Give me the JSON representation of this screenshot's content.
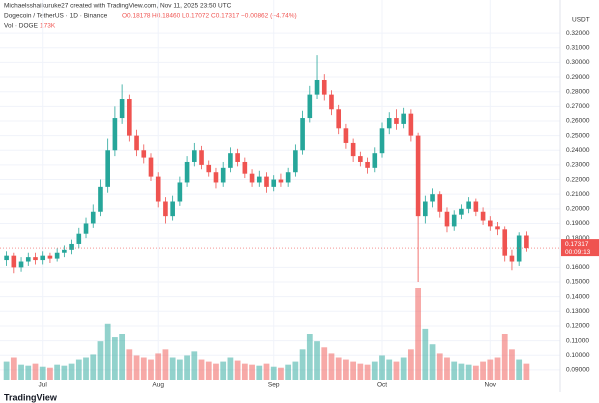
{
  "header": {
    "attribution": "Michaelsshaikuruke27 created with TradingView.com, Nov 11, 2025 23:50 UTC",
    "symbol": "Dogecoin / TetherUS · 1D · Binance",
    "open": "O0.18178",
    "high": "H0.18460",
    "low": "L0.17072",
    "close": "C0.17317",
    "change": "−0.00862 (−4.74%)",
    "volume_label": "Vol · DOGE",
    "volume_value": "173K",
    "logo": "TradingView"
  },
  "chart_data": {
    "type": "candlestick",
    "currency": "USDT",
    "price_label": "0.17317",
    "countdown": "00:09:13",
    "up_color": "#26a69a",
    "down_color": "#ef5350",
    "categories": [
      null,
      null,
      null,
      null,
      null,
      "Jul",
      null,
      null,
      null,
      null,
      null,
      null,
      null,
      null,
      null,
      null,
      null,
      null,
      null,
      null,
      null,
      "Aug",
      null,
      null,
      null,
      null,
      null,
      null,
      null,
      null,
      null,
      null,
      null,
      null,
      null,
      null,
      null,
      "Sep",
      null,
      null,
      null,
      null,
      null,
      null,
      null,
      null,
      null,
      null,
      null,
      null,
      null,
      null,
      "Oct",
      null,
      null,
      null,
      null,
      null,
      null,
      null,
      null,
      null,
      null,
      null,
      null,
      null,
      null,
      "Nov",
      null,
      null,
      null,
      null,
      null
    ],
    "open": [
      0.165,
      0.168,
      0.16,
      0.164,
      0.167,
      0.165,
      0.168,
      0.166,
      0.17,
      0.172,
      0.176,
      0.183,
      0.19,
      0.198,
      0.215,
      0.24,
      0.262,
      0.275,
      0.25,
      0.24,
      0.235,
      0.222,
      0.205,
      0.195,
      0.205,
      0.218,
      0.232,
      0.24,
      0.23,
      0.225,
      0.218,
      0.228,
      0.238,
      0.232,
      0.224,
      0.218,
      0.222,
      0.215,
      0.22,
      0.218,
      0.225,
      0.24,
      0.262,
      0.278,
      0.288,
      0.278,
      0.268,
      0.255,
      0.245,
      0.236,
      0.232,
      0.228,
      0.238,
      0.255,
      0.262,
      0.258,
      0.265,
      0.25,
      0.195,
      0.205,
      0.21,
      0.198,
      0.188,
      0.196,
      0.2,
      0.205,
      0.198,
      0.192,
      0.188,
      0.186,
      0.168,
      0.164,
      0.18178
    ],
    "high": [
      0.171,
      0.17,
      0.167,
      0.17,
      0.17,
      0.171,
      0.17,
      0.173,
      0.175,
      0.179,
      0.187,
      0.194,
      0.203,
      0.22,
      0.248,
      0.27,
      0.285,
      0.278,
      0.254,
      0.244,
      0.238,
      0.225,
      0.208,
      0.209,
      0.222,
      0.236,
      0.245,
      0.243,
      0.233,
      0.228,
      0.232,
      0.242,
      0.241,
      0.235,
      0.227,
      0.226,
      0.225,
      0.223,
      0.224,
      0.228,
      0.244,
      0.267,
      0.284,
      0.305,
      0.292,
      0.281,
      0.271,
      0.258,
      0.248,
      0.239,
      0.235,
      0.242,
      0.259,
      0.266,
      0.268,
      0.269,
      0.268,
      0.252,
      0.209,
      0.214,
      0.212,
      0.201,
      0.199,
      0.203,
      0.208,
      0.207,
      0.201,
      0.195,
      0.191,
      0.188,
      0.172,
      0.184,
      0.1846
    ],
    "low": [
      0.161,
      0.156,
      0.157,
      0.161,
      0.162,
      0.162,
      0.163,
      0.164,
      0.167,
      0.169,
      0.173,
      0.18,
      0.187,
      0.195,
      0.211,
      0.236,
      0.258,
      0.246,
      0.236,
      0.231,
      0.219,
      0.201,
      0.19,
      0.192,
      0.202,
      0.215,
      0.229,
      0.227,
      0.222,
      0.214,
      0.215,
      0.225,
      0.229,
      0.221,
      0.215,
      0.215,
      0.211,
      0.212,
      0.215,
      0.215,
      0.222,
      0.237,
      0.259,
      0.275,
      0.274,
      0.264,
      0.251,
      0.241,
      0.232,
      0.229,
      0.224,
      0.225,
      0.235,
      0.251,
      0.254,
      0.255,
      0.246,
      0.15,
      0.19,
      0.201,
      0.194,
      0.184,
      0.185,
      0.193,
      0.197,
      0.195,
      0.189,
      0.185,
      0.182,
      0.164,
      0.158,
      0.161,
      0.17072
    ],
    "close": [
      0.168,
      0.16,
      0.164,
      0.167,
      0.165,
      0.168,
      0.166,
      0.17,
      0.172,
      0.176,
      0.183,
      0.19,
      0.198,
      0.215,
      0.24,
      0.262,
      0.275,
      0.25,
      0.24,
      0.235,
      0.222,
      0.205,
      0.195,
      0.205,
      0.218,
      0.232,
      0.24,
      0.23,
      0.225,
      0.218,
      0.228,
      0.238,
      0.232,
      0.224,
      0.218,
      0.222,
      0.215,
      0.22,
      0.218,
      0.225,
      0.24,
      0.262,
      0.278,
      0.288,
      0.278,
      0.268,
      0.255,
      0.245,
      0.236,
      0.232,
      0.228,
      0.238,
      0.255,
      0.262,
      0.258,
      0.265,
      0.25,
      0.195,
      0.205,
      0.21,
      0.198,
      0.188,
      0.196,
      0.2,
      0.205,
      0.198,
      0.192,
      0.188,
      0.186,
      0.168,
      0.164,
      0.18178,
      0.17317
    ],
    "volume": [
      18,
      22,
      15,
      14,
      16,
      13,
      12,
      15,
      14,
      16,
      20,
      22,
      25,
      38,
      55,
      42,
      45,
      30,
      24,
      22,
      20,
      26,
      30,
      22,
      20,
      24,
      28,
      20,
      18,
      16,
      18,
      22,
      19,
      16,
      15,
      14,
      16,
      13,
      12,
      15,
      18,
      30,
      45,
      38,
      32,
      26,
      22,
      20,
      18,
      16,
      15,
      18,
      24,
      20,
      18,
      22,
      30,
      90,
      50,
      35,
      26,
      22,
      18,
      16,
      15,
      14,
      18,
      20,
      22,
      45,
      30,
      20,
      16
    ],
    "ylim": [
      0.08,
      0.33
    ],
    "yticks": [
      {
        "value": 0.32,
        "label": "0.32000"
      },
      {
        "value": 0.31,
        "label": "0.31000"
      },
      {
        "value": 0.3,
        "label": "0.30000"
      },
      {
        "value": 0.29,
        "label": "0.29000"
      },
      {
        "value": 0.28,
        "label": "0.28000"
      },
      {
        "value": 0.27,
        "label": "0.27000"
      },
      {
        "value": 0.26,
        "label": "0.26000"
      },
      {
        "value": 0.25,
        "label": "0.25000"
      },
      {
        "value": 0.24,
        "label": "0.24000"
      },
      {
        "value": 0.23,
        "label": "0.23000"
      },
      {
        "value": 0.22,
        "label": "0.22000"
      },
      {
        "value": 0.21,
        "label": "0.21000"
      },
      {
        "value": 0.2,
        "label": "0.20000"
      },
      {
        "value": 0.19,
        "label": "0.19000"
      },
      {
        "value": 0.18,
        "label": "0.18000"
      },
      {
        "value": 0.16,
        "label": "0.16000"
      },
      {
        "value": 0.15,
        "label": "0.15000"
      },
      {
        "value": 0.14,
        "label": "0.14000"
      },
      {
        "value": 0.13,
        "label": "0.13000"
      },
      {
        "value": 0.12,
        "label": "0.12000"
      },
      {
        "value": 0.11,
        "label": "0.11000"
      },
      {
        "value": 0.1,
        "label": "0.10000"
      },
      {
        "value": 0.09,
        "label": "0.09000"
      }
    ],
    "grid": true
  }
}
